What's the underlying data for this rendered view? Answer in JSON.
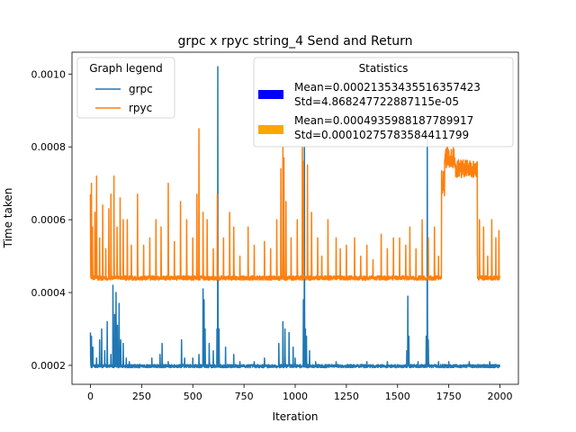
{
  "chart_data": {
    "type": "line",
    "title": "grpc x rpyc string_4 Send and Return",
    "xlabel": "Iteration",
    "ylabel": "Time taken",
    "xlim": [
      -90,
      2090
    ],
    "ylim": [
      0.000148,
      0.00106
    ],
    "x_ticks": [
      0,
      250,
      500,
      750,
      1000,
      1250,
      1500,
      1750,
      2000
    ],
    "x_tick_labels": [
      "0",
      "250",
      "500",
      "750",
      "1000",
      "1250",
      "1500",
      "1750",
      "2000"
    ],
    "y_ticks": [
      0.0002,
      0.0004,
      0.0006,
      0.0008,
      0.001
    ],
    "y_tick_labels": [
      "0.0002",
      "0.0004",
      "0.0006",
      "0.0008",
      "0.0010"
    ],
    "grid": false,
    "n_points": 2000,
    "series": [
      {
        "name": "grpc",
        "color": "#1f77b4",
        "baseline": 0.000198,
        "noise": 4.5e-06,
        "spikes": [
          [
            0,
            0.00029
          ],
          [
            5,
            0.00028
          ],
          [
            12,
            0.00025
          ],
          [
            30,
            0.00022
          ],
          [
            45,
            0.00027
          ],
          [
            55,
            0.0003
          ],
          [
            70,
            0.00024
          ],
          [
            82,
            0.00032
          ],
          [
            100,
            0.00023
          ],
          [
            110,
            0.00042
          ],
          [
            118,
            0.00034
          ],
          [
            125,
            0.0004
          ],
          [
            132,
            0.00031
          ],
          [
            140,
            0.00037
          ],
          [
            148,
            0.00027
          ],
          [
            160,
            0.00026
          ],
          [
            175,
            0.00022
          ],
          [
            190,
            0.00021
          ],
          [
            220,
            0.0002
          ],
          [
            250,
            0.0002
          ],
          [
            300,
            0.00022
          ],
          [
            340,
            0.00023
          ],
          [
            350,
            0.00026
          ],
          [
            380,
            0.00021
          ],
          [
            430,
            0.0002
          ],
          [
            445,
            0.00027
          ],
          [
            460,
            0.00022
          ],
          [
            500,
            0.00022
          ],
          [
            530,
            0.00023
          ],
          [
            550,
            0.00041
          ],
          [
            555,
            0.00038
          ],
          [
            560,
            0.0003
          ],
          [
            580,
            0.00026
          ],
          [
            600,
            0.00024
          ],
          [
            618,
            0.0003
          ],
          [
            622,
            0.00102
          ],
          [
            628,
            0.0003
          ],
          [
            660,
            0.00025
          ],
          [
            700,
            0.00023
          ],
          [
            730,
            0.00021
          ],
          [
            800,
            0.00021
          ],
          [
            850,
            0.00022
          ],
          [
            920,
            0.00026
          ],
          [
            940,
            0.00032
          ],
          [
            950,
            0.0003
          ],
          [
            970,
            0.00029
          ],
          [
            990,
            0.00025
          ],
          [
            1000,
            0.00022
          ],
          [
            1040,
            0.00038
          ],
          [
            1045,
            0.0008
          ],
          [
            1050,
            0.0003
          ],
          [
            1055,
            0.00028
          ],
          [
            1070,
            0.00024
          ],
          [
            1100,
            0.00021
          ],
          [
            1150,
            0.0002
          ],
          [
            1200,
            0.00021
          ],
          [
            1300,
            0.0002
          ],
          [
            1350,
            0.00021
          ],
          [
            1400,
            0.0002
          ],
          [
            1450,
            0.00021
          ],
          [
            1500,
            0.0002
          ],
          [
            1545,
            0.00024
          ],
          [
            1550,
            0.00039
          ],
          [
            1555,
            0.00028
          ],
          [
            1600,
            0.00021
          ],
          [
            1640,
            0.00028
          ],
          [
            1645,
            0.00082
          ],
          [
            1650,
            0.00027
          ],
          [
            1700,
            0.00021
          ],
          [
            1750,
            0.00021
          ],
          [
            1800,
            0.0002
          ],
          [
            1850,
            0.00021
          ],
          [
            1900,
            0.0002
          ],
          [
            1950,
            0.00021
          ],
          [
            1990,
            0.0002
          ]
        ]
      },
      {
        "name": "rpyc",
        "color": "#ff7f0e",
        "baseline": 0.00044,
        "noise": 6e-06,
        "spikes": [
          [
            0,
            0.00067
          ],
          [
            5,
            0.0007
          ],
          [
            10,
            0.00058
          ],
          [
            22,
            0.00062
          ],
          [
            30,
            0.00072
          ],
          [
            45,
            0.00055
          ],
          [
            60,
            0.00064
          ],
          [
            75,
            0.00052
          ],
          [
            90,
            0.00063
          ],
          [
            100,
            0.00067
          ],
          [
            115,
            0.00072
          ],
          [
            130,
            0.00058
          ],
          [
            145,
            0.00066
          ],
          [
            160,
            0.0006
          ],
          [
            180,
            0.0006
          ],
          [
            200,
            0.00053
          ],
          [
            230,
            0.00067
          ],
          [
            260,
            0.00053
          ],
          [
            290,
            0.00055
          ],
          [
            320,
            0.0006
          ],
          [
            345,
            0.00058
          ],
          [
            380,
            0.0007
          ],
          [
            410,
            0.00054
          ],
          [
            440,
            0.00065
          ],
          [
            470,
            0.0006
          ],
          [
            500,
            0.00055
          ],
          [
            520,
            0.00067
          ],
          [
            530,
            0.00085
          ],
          [
            550,
            0.00062
          ],
          [
            570,
            0.0006
          ],
          [
            600,
            0.00052
          ],
          [
            620,
            0.00067
          ],
          [
            650,
            0.00055
          ],
          [
            680,
            0.00062
          ],
          [
            700,
            0.00058
          ],
          [
            730,
            0.0005
          ],
          [
            770,
            0.00058
          ],
          [
            800,
            0.00053
          ],
          [
            850,
            0.00054
          ],
          [
            880,
            0.00052
          ],
          [
            910,
            0.0006
          ],
          [
            930,
            0.00074
          ],
          [
            940,
            0.0008
          ],
          [
            945,
            0.00077
          ],
          [
            955,
            0.00065
          ],
          [
            980,
            0.00055
          ],
          [
            1010,
            0.0006
          ],
          [
            1035,
            0.0008
          ],
          [
            1040,
            0.00076
          ],
          [
            1060,
            0.00075
          ],
          [
            1080,
            0.00062
          ],
          [
            1110,
            0.00055
          ],
          [
            1130,
            0.0005
          ],
          [
            1160,
            0.0006
          ],
          [
            1200,
            0.00055
          ],
          [
            1220,
            0.00052
          ],
          [
            1250,
            0.00053
          ],
          [
            1290,
            0.00055
          ],
          [
            1320,
            0.0005
          ],
          [
            1350,
            0.00053
          ],
          [
            1380,
            0.00049
          ],
          [
            1420,
            0.00056
          ],
          [
            1450,
            0.00052
          ],
          [
            1480,
            0.00055
          ],
          [
            1510,
            0.00055
          ],
          [
            1540,
            0.00053
          ],
          [
            1560,
            0.00058
          ],
          [
            1590,
            0.00052
          ],
          [
            1620,
            0.0006
          ],
          [
            1650,
            0.00055
          ],
          [
            1680,
            0.00058
          ],
          [
            1700,
            0.0005
          ],
          [
            1890,
            0.0005
          ],
          [
            1900,
            0.0006
          ],
          [
            1920,
            0.00058
          ],
          [
            1940,
            0.0005
          ],
          [
            1960,
            0.0006
          ],
          [
            1980,
            0.00055
          ],
          [
            1995,
            0.00057
          ]
        ],
        "plateaus": [
          [
            1715,
            1730,
            0.0007,
            3.5e-05
          ],
          [
            1730,
            1780,
            0.00077,
            3e-05
          ],
          [
            1780,
            1890,
            0.00074,
            2.5e-05
          ]
        ]
      }
    ],
    "legend": {
      "title": "Graph legend",
      "position": "top-left"
    },
    "stats_box": {
      "title": "Statistics",
      "position": "top-right",
      "entries": [
        {
          "color": "#0000ff",
          "mean": "Mean=0.00021353435516357423",
          "std": "Std=4.868247722887115e-05"
        },
        {
          "color": "#ffa500",
          "mean": "Mean=0.0004935988187789917",
          "std": "Std=0.00010275783584411799"
        }
      ]
    }
  }
}
